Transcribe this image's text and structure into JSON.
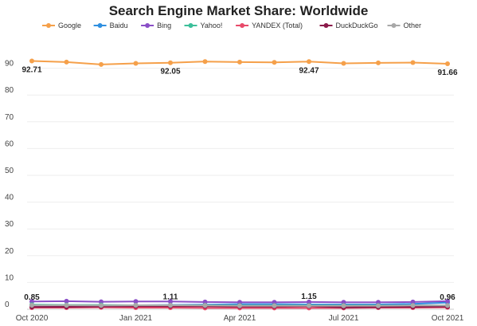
{
  "chart_data": {
    "type": "line",
    "title": "Search Engine Market Share: Worldwide",
    "xlabel": "",
    "ylabel": "",
    "ylim": [
      0,
      100
    ],
    "yticks": [
      0,
      10,
      20,
      30,
      40,
      50,
      60,
      70,
      80,
      90
    ],
    "grid": true,
    "legend_position": "top",
    "x": [
      "Oct 2020",
      "Nov 2020",
      "Dec 2020",
      "Jan 2021",
      "Feb 2021",
      "Mar 2021",
      "Apr 2021",
      "May 2021",
      "Jun 2021",
      "Jul 2021",
      "Aug 2021",
      "Sep 2021",
      "Oct 2021"
    ],
    "xtick_labels": [
      {
        "index": 0,
        "label": "Oct 2020"
      },
      {
        "index": 3,
        "label": "Jan 2021"
      },
      {
        "index": 6,
        "label": "Apr 2021"
      },
      {
        "index": 9,
        "label": "Jul 2021"
      },
      {
        "index": 12,
        "label": "Oct 2021"
      }
    ],
    "series": [
      {
        "name": "Google",
        "color": "#f5a04a",
        "values": [
          92.71,
          92.3,
          91.4,
          91.8,
          92.05,
          92.5,
          92.3,
          92.2,
          92.47,
          91.8,
          92.0,
          92.1,
          91.66
        ]
      },
      {
        "name": "Baidu",
        "color": "#2f8fe0",
        "values": [
          1.4,
          1.3,
          1.5,
          1.5,
          1.6,
          1.7,
          1.9,
          1.9,
          1.8,
          1.8,
          1.8,
          2.0,
          2.5
        ]
      },
      {
        "name": "Bing",
        "color": "#8a4fc7",
        "values": [
          2.9,
          3.0,
          2.8,
          2.9,
          2.9,
          2.7,
          2.6,
          2.6,
          2.7,
          2.6,
          2.6,
          2.7,
          3.0
        ]
      },
      {
        "name": "Yahoo!",
        "color": "#3cbf9a",
        "values": [
          1.7,
          1.6,
          1.6,
          1.5,
          1.5,
          1.5,
          1.4,
          1.4,
          1.4,
          1.4,
          1.4,
          1.4,
          1.4
        ]
      },
      {
        "name": "YANDEX (Total)",
        "color": "#e84a6a",
        "values": [
          0.6,
          0.6,
          0.7,
          0.6,
          0.6,
          0.5,
          0.5,
          0.5,
          0.5,
          0.5,
          0.6,
          0.6,
          0.7
        ]
      },
      {
        "name": "DuckDuckGo",
        "color": "#8b1a4a",
        "values": [
          0.85,
          0.9,
          1.0,
          1.1,
          1.11,
          1.1,
          1.0,
          1.0,
          1.15,
          0.7,
          0.8,
          0.9,
          0.96
        ]
      },
      {
        "name": "Other",
        "color": "#a8a8a8",
        "values": [
          1.5,
          1.5,
          1.4,
          1.5,
          1.5,
          1.4,
          1.3,
          1.3,
          1.3,
          1.3,
          1.3,
          1.4,
          1.4
        ]
      }
    ],
    "data_labels": [
      {
        "series": "Google",
        "index": 0,
        "text": "92.71",
        "position": "below"
      },
      {
        "series": "Google",
        "index": 4,
        "text": "92.05",
        "position": "below"
      },
      {
        "series": "Google",
        "index": 8,
        "text": "92.47",
        "position": "below"
      },
      {
        "series": "Google",
        "index": 12,
        "text": "91.66",
        "position": "below"
      },
      {
        "series": "DuckDuckGo",
        "index": 0,
        "text": "0.85",
        "position": "above"
      },
      {
        "series": "DuckDuckGo",
        "index": 4,
        "text": "1.11",
        "position": "above"
      },
      {
        "series": "DuckDuckGo",
        "index": 8,
        "text": "1.15",
        "position": "above"
      },
      {
        "series": "DuckDuckGo",
        "index": 12,
        "text": "0.96",
        "position": "above"
      }
    ]
  }
}
